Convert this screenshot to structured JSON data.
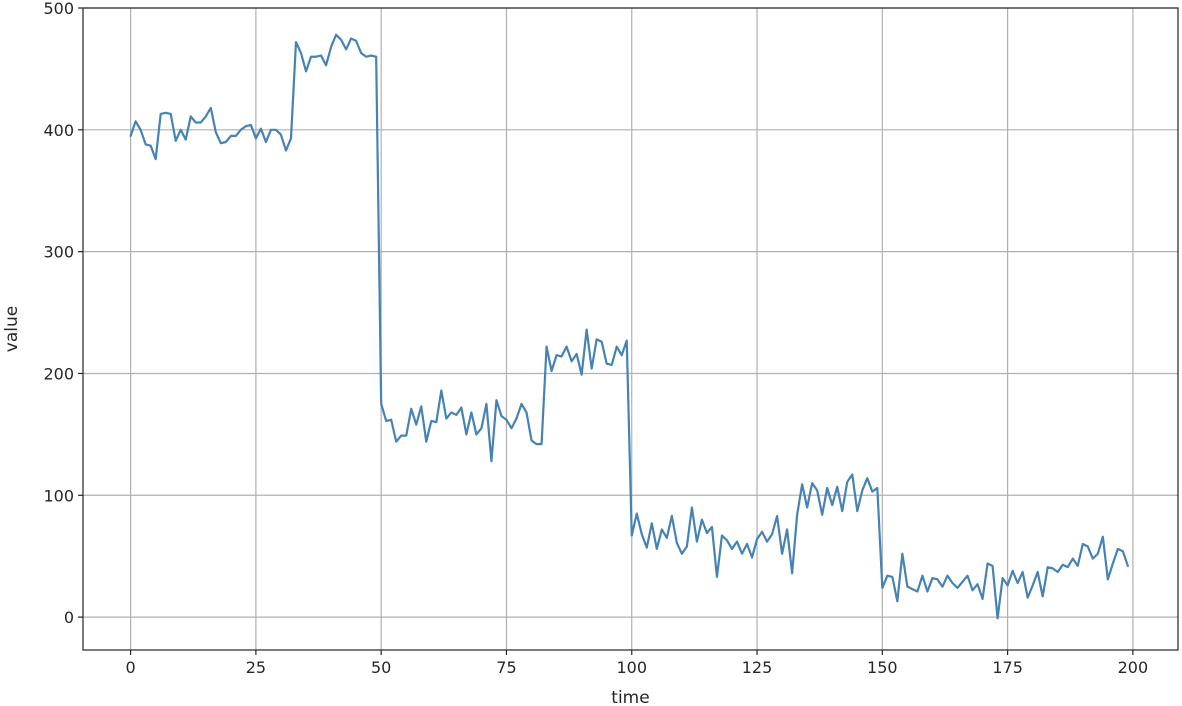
{
  "chart_data": {
    "type": "line",
    "title": "",
    "xlabel": "time",
    "ylabel": "value",
    "xlim": [
      -9.5,
      209
    ],
    "ylim": [
      -27,
      500
    ],
    "grid": true,
    "x_ticks": [
      0,
      25,
      50,
      75,
      100,
      125,
      150,
      175,
      200
    ],
    "x_tick_labels": [
      "0",
      "25",
      "50",
      "75",
      "100",
      "125",
      "150",
      "175",
      "200"
    ],
    "y_ticks": [
      0,
      100,
      200,
      300,
      400,
      500
    ],
    "y_tick_labels": [
      "0",
      "100",
      "200",
      "300",
      "400",
      "500"
    ],
    "series": [
      {
        "color": "#4682b4",
        "x_start": 0,
        "x_step": 1,
        "values": [
          395,
          407,
          400,
          388,
          387,
          376,
          413,
          414,
          413,
          391,
          400,
          392,
          411,
          406,
          406,
          411,
          418,
          398,
          389,
          390,
          395,
          395,
          400,
          403,
          404,
          393,
          401,
          390,
          400,
          400,
          396,
          383,
          393,
          472,
          463,
          448,
          460,
          460,
          461,
          453,
          468,
          478,
          474,
          466,
          475,
          473,
          463,
          460,
          461,
          460,
          175,
          161,
          162,
          144,
          149,
          149,
          171,
          158,
          173,
          144,
          161,
          160,
          186,
          163,
          168,
          166,
          172,
          150,
          168,
          150,
          155,
          175,
          128,
          178,
          165,
          162,
          155,
          163,
          175,
          168,
          145,
          142,
          142,
          222,
          202,
          215,
          214,
          222,
          210,
          216,
          199,
          236,
          204,
          228,
          226,
          208,
          207,
          222,
          215,
          227,
          67,
          85,
          68,
          57,
          77,
          56,
          72,
          65,
          83,
          61,
          52,
          58,
          90,
          62,
          80,
          69,
          74,
          33,
          67,
          63,
          56,
          62,
          52,
          60,
          49,
          64,
          70,
          62,
          68,
          83,
          52,
          72,
          36,
          84,
          109,
          90,
          110,
          104,
          84,
          106,
          92,
          107,
          87,
          111,
          117,
          87,
          104,
          114,
          103,
          106,
          24,
          34,
          33,
          13,
          52,
          25,
          23,
          21,
          34,
          21,
          32,
          31,
          25,
          34,
          28,
          24,
          29,
          34,
          22,
          27,
          15,
          44,
          42,
          -1,
          32,
          26,
          38,
          28,
          37,
          16,
          26,
          37,
          17,
          41,
          40,
          37,
          43,
          41,
          48,
          42,
          60,
          58,
          48,
          52,
          66,
          31,
          44,
          56,
          54,
          42
        ]
      }
    ]
  }
}
